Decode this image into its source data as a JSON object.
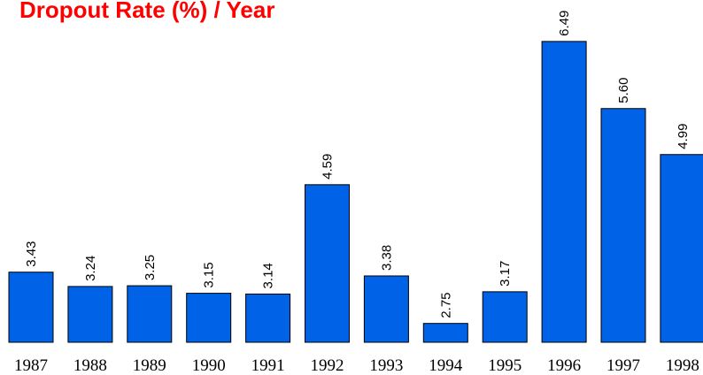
{
  "chart_data": {
    "type": "bar",
    "title": "Dropout Rate (%) / Year",
    "categories": [
      "1987",
      "1988",
      "1989",
      "1990",
      "1991",
      "1992",
      "1993",
      "1994",
      "1995",
      "1996",
      "1997",
      "1998"
    ],
    "values": [
      3.43,
      3.24,
      3.25,
      3.15,
      3.14,
      4.59,
      3.38,
      2.75,
      3.17,
      6.49,
      5.6,
      4.99
    ],
    "value_labels": [
      "3.43",
      "3.24",
      "3.25",
      "3.15",
      "3.14",
      "4.59",
      "3.38",
      "2.75",
      "3.17",
      "6.49",
      "5.60",
      "4.99"
    ],
    "color": "#0062e6",
    "ylim": [
      2.5,
      6.5
    ]
  }
}
